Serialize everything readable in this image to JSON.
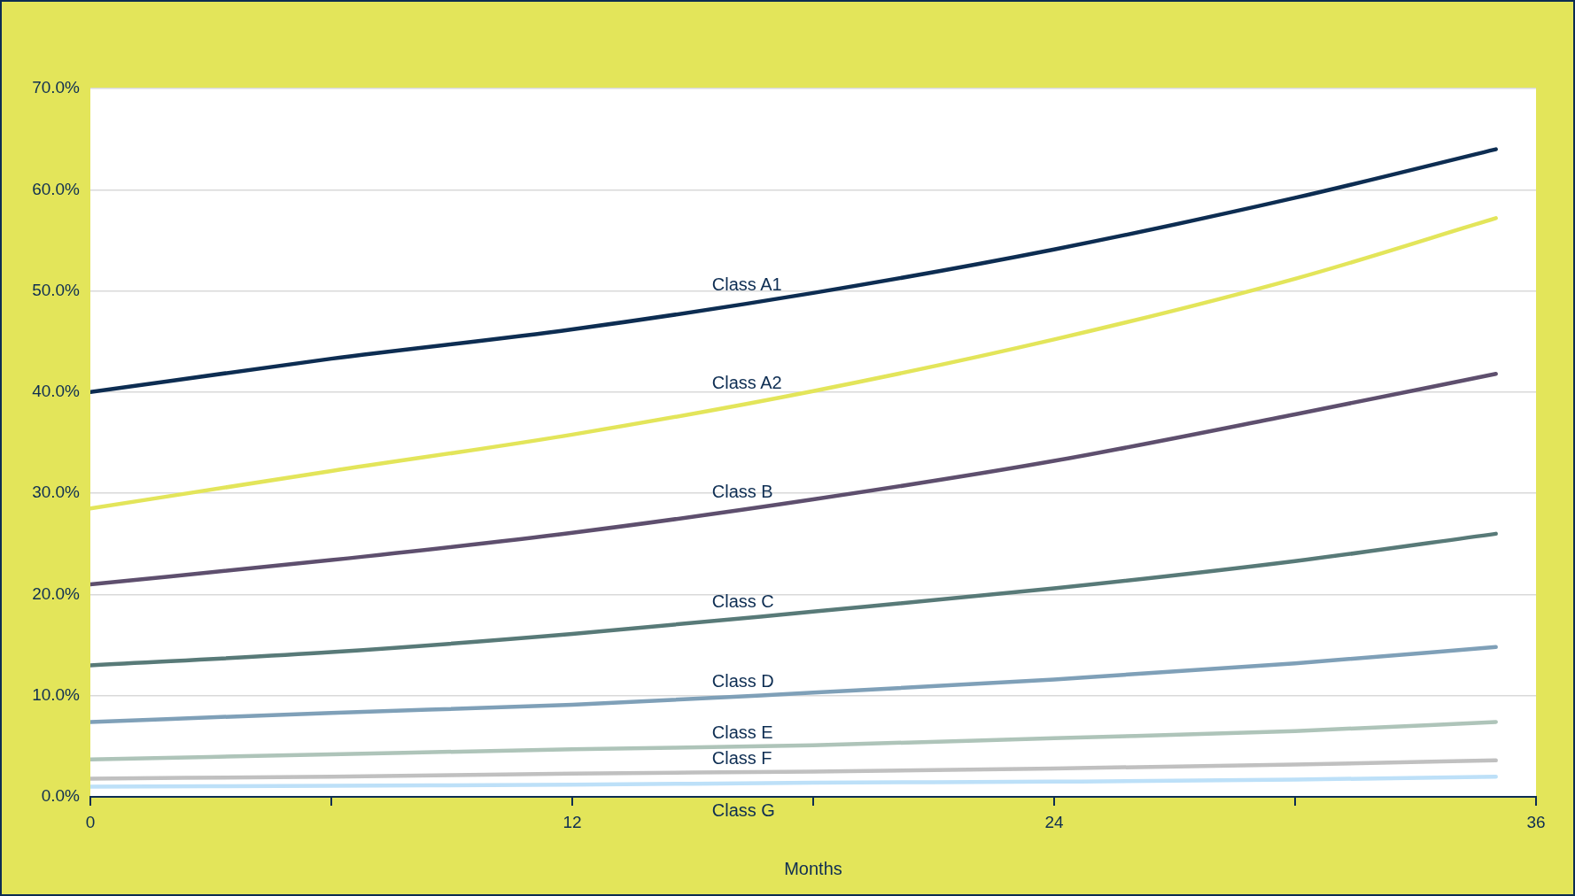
{
  "chart_data": {
    "type": "line",
    "xlabel": "Months",
    "x": [
      0,
      6,
      12,
      18,
      24,
      30,
      35
    ],
    "series": [
      {
        "name": "Class A1",
        "color": "#0d2d52",
        "values": [
          40.0,
          43.3,
          46.2,
          49.8,
          54.1,
          59.2,
          64.0
        ]
      },
      {
        "name": "Class A2",
        "color": "#e3e55a",
        "values": [
          28.5,
          32.2,
          35.8,
          40.1,
          45.2,
          51.2,
          57.2
        ]
      },
      {
        "name": "Class B",
        "color": "#5e4f6e",
        "values": [
          21.0,
          23.4,
          26.1,
          29.4,
          33.2,
          37.8,
          41.8
        ]
      },
      {
        "name": "Class C",
        "color": "#587a78",
        "values": [
          13.0,
          14.3,
          16.1,
          18.3,
          20.6,
          23.3,
          26.0
        ]
      },
      {
        "name": "Class D",
        "color": "#7fa0b8",
        "values": [
          7.4,
          8.3,
          9.1,
          10.3,
          11.6,
          13.2,
          14.8
        ]
      },
      {
        "name": "Class E",
        "color": "#aec4b9",
        "values": [
          3.7,
          4.2,
          4.7,
          5.1,
          5.8,
          6.5,
          7.4
        ]
      },
      {
        "name": "Class F",
        "color": "#c0c0c0",
        "values": [
          1.8,
          2.0,
          2.3,
          2.5,
          2.8,
          3.2,
          3.6
        ]
      },
      {
        "name": "Class G",
        "color": "#bde0f8",
        "values": [
          1.0,
          1.1,
          1.2,
          1.4,
          1.5,
          1.7,
          2.0
        ]
      }
    ],
    "xlim": [
      0,
      36
    ],
    "xticks": [
      0,
      {
        "value": 6,
        "label": null
      },
      12,
      {
        "value": 18,
        "label": null
      },
      24,
      {
        "value": 30,
        "label": null
      },
      36
    ],
    "ylim": [
      0,
      70
    ],
    "yticks": [
      {
        "value": 0,
        "label": "0.0%"
      },
      {
        "value": 10,
        "label": "10.0%"
      },
      {
        "value": 20,
        "label": "20.0%"
      },
      {
        "value": 30,
        "label": "30.0%"
      },
      {
        "value": 40,
        "label": "40.0%"
      },
      {
        "value": 50,
        "label": "50.0%"
      },
      {
        "value": 60,
        "label": "60.0%"
      },
      {
        "value": 70,
        "label": "70.0%"
      }
    ],
    "grid": "y",
    "legend": false,
    "marker": "none",
    "line_style": "solid"
  }
}
